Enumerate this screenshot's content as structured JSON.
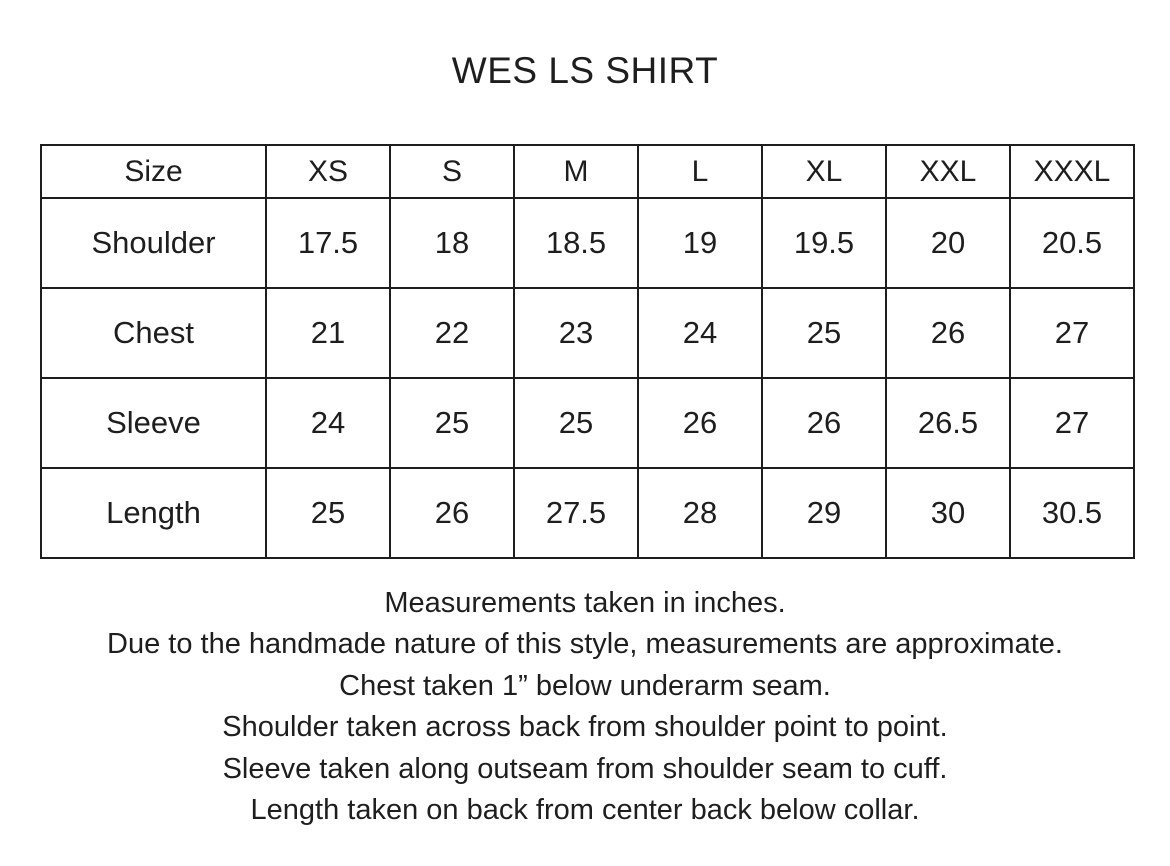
{
  "title": "WES LS SHIRT",
  "table": {
    "header_label": "Size",
    "sizes": [
      "XS",
      "S",
      "M",
      "L",
      "XL",
      "XXL",
      "XXXL"
    ],
    "rows": [
      {
        "label": "Shoulder",
        "values": [
          "17.5",
          "18",
          "18.5",
          "19",
          "19.5",
          "20",
          "20.5"
        ]
      },
      {
        "label": "Chest",
        "values": [
          "21",
          "22",
          "23",
          "24",
          "25",
          "26",
          "27"
        ]
      },
      {
        "label": "Sleeve",
        "values": [
          "24",
          "25",
          "25",
          "26",
          "26",
          "26.5",
          "27"
        ]
      },
      {
        "label": "Length",
        "values": [
          "25",
          "26",
          "27.5",
          "28",
          "29",
          "30",
          "30.5"
        ]
      }
    ]
  },
  "notes": [
    "Measurements taken in inches.",
    "Due to the handmade nature of this style, measurements are approximate.",
    "Chest taken 1” below underarm seam.",
    "Shoulder taken across back from shoulder point to point.",
    "Sleeve taken along outseam from shoulder seam to cuff.",
    "Length taken on back from center back below collar."
  ]
}
